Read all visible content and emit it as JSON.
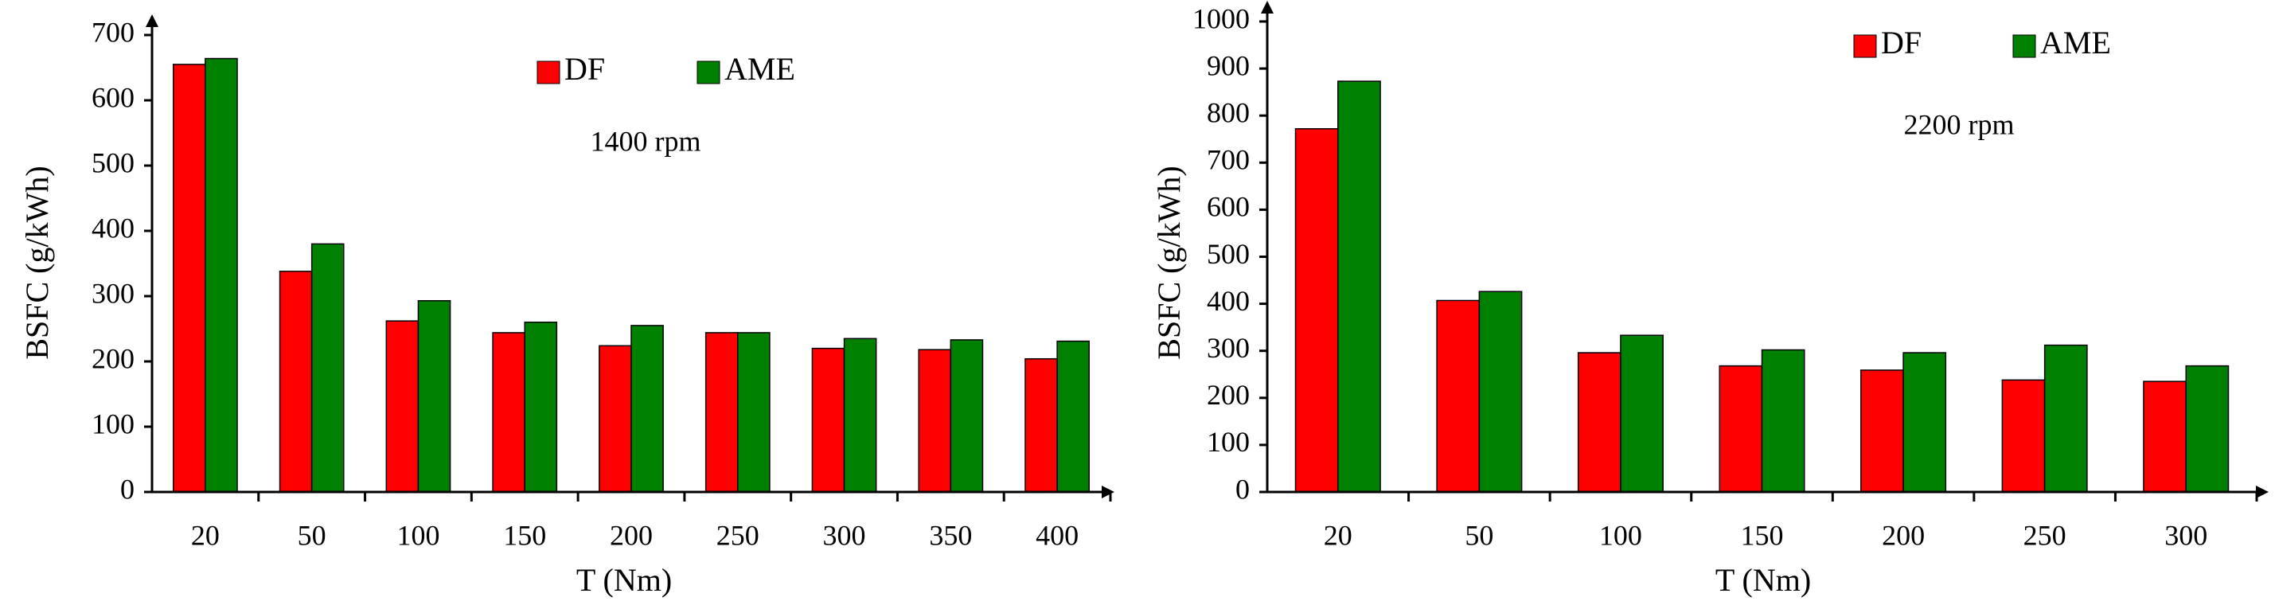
{
  "chart_data": [
    {
      "type": "bar",
      "annotation": "1400 rpm",
      "x_label": "T (Nm)",
      "y_label": "BSFC (g/kWh)",
      "categories": [
        "20",
        "50",
        "100",
        "150",
        "200",
        "250",
        "300",
        "350",
        "400"
      ],
      "series": [
        {
          "name": "DF",
          "color": "#ff0000",
          "values": [
            655,
            338,
            262,
            244,
            224,
            244,
            220,
            218,
            204
          ]
        },
        {
          "name": "AME",
          "color": "#008000",
          "values": [
            664,
            380,
            293,
            260,
            255,
            244,
            235,
            233,
            231
          ]
        }
      ],
      "ylim": [
        0,
        700
      ],
      "yticks": [
        0,
        100,
        200,
        300,
        400,
        500,
        600,
        700
      ]
    },
    {
      "type": "bar",
      "annotation": "2200 rpm",
      "x_label": "T (Nm)",
      "y_label": "BSFC (g/kWh)",
      "categories": [
        "20",
        "50",
        "100",
        "150",
        "200",
        "250",
        "300"
      ],
      "series": [
        {
          "name": "DF",
          "color": "#ff0000",
          "values": [
            772,
            407,
            296,
            268,
            259,
            238,
            235
          ]
        },
        {
          "name": "AME",
          "color": "#008000",
          "values": [
            873,
            426,
            333,
            302,
            296,
            312,
            268
          ]
        }
      ],
      "ylim": [
        0,
        1000
      ],
      "yticks": [
        0,
        100,
        200,
        300,
        400,
        500,
        600,
        700,
        800,
        900,
        1000
      ]
    }
  ]
}
